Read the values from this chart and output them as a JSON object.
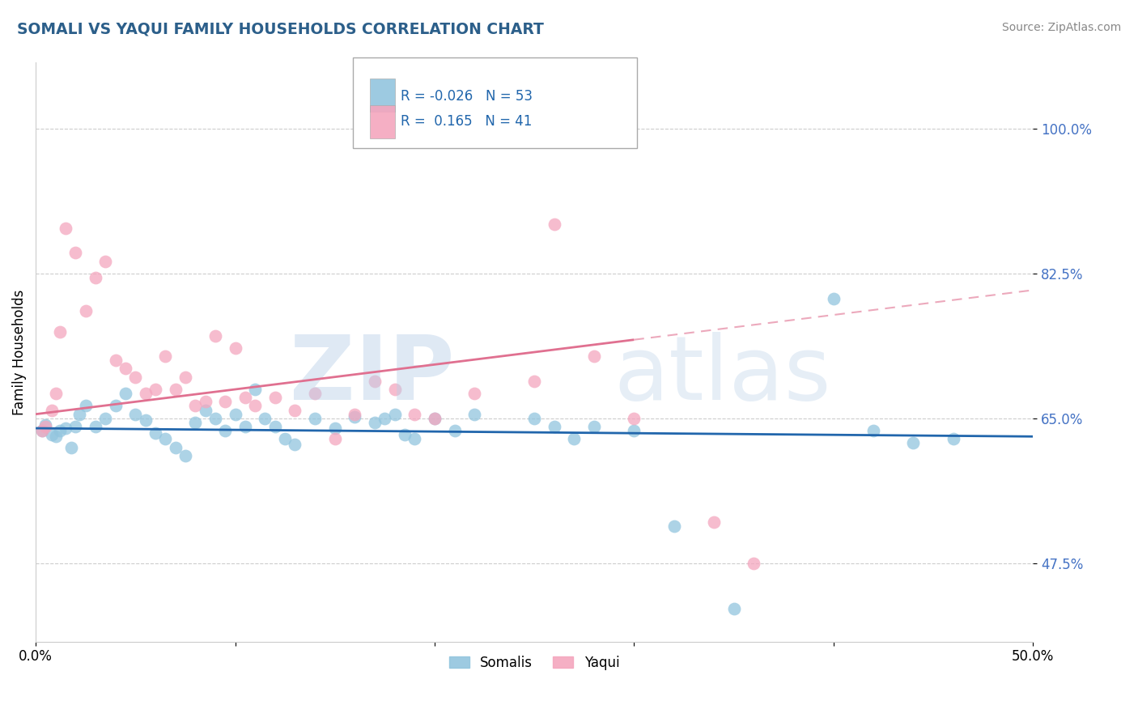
{
  "title": "SOMALI VS YAQUI FAMILY HOUSEHOLDS CORRELATION CHART",
  "source": "Source: ZipAtlas.com",
  "ylabel": "Family Households",
  "yticks": [
    "47.5%",
    "65.0%",
    "82.5%",
    "100.0%"
  ],
  "ytick_vals": [
    47.5,
    65.0,
    82.5,
    100.0
  ],
  "xlim": [
    0.0,
    50.0
  ],
  "ylim": [
    38.0,
    108.0
  ],
  "somali_R": "-0.026",
  "somali_N": "53",
  "yaqui_R": "0.165",
  "yaqui_N": "41",
  "somali_color": "#92c5de",
  "yaqui_color": "#f4a6be",
  "somali_line_color": "#2166ac",
  "yaqui_line_color": "#e07090",
  "legend_somali": "Somalis",
  "legend_yaqui": "Yaqui",
  "somali_line_x0": 0.0,
  "somali_line_y0": 63.8,
  "somali_line_x1": 50.0,
  "somali_line_y1": 62.8,
  "yaqui_solid_x0": 0.0,
  "yaqui_solid_y0": 65.5,
  "yaqui_solid_x1": 30.0,
  "yaqui_solid_y1": 74.5,
  "yaqui_dash_x0": 30.0,
  "yaqui_dash_y0": 74.5,
  "yaqui_dash_x1": 50.0,
  "yaqui_dash_y1": 80.5,
  "somali_scatter_x": [
    0.3,
    0.5,
    0.8,
    1.0,
    1.2,
    1.5,
    1.8,
    2.0,
    2.2,
    2.5,
    3.0,
    3.5,
    4.0,
    4.5,
    5.0,
    5.5,
    6.0,
    6.5,
    7.0,
    7.5,
    8.0,
    8.5,
    9.0,
    9.5,
    10.0,
    10.5,
    11.0,
    11.5,
    12.0,
    12.5,
    13.0,
    14.0,
    15.0,
    16.0,
    17.0,
    17.5,
    18.0,
    18.5,
    19.0,
    20.0,
    21.0,
    22.0,
    25.0,
    26.0,
    27.0,
    28.0,
    30.0,
    32.0,
    35.0,
    40.0,
    42.0,
    44.0,
    46.0
  ],
  "somali_scatter_y": [
    63.5,
    64.2,
    63.0,
    62.8,
    63.5,
    63.8,
    61.5,
    64.0,
    65.5,
    66.5,
    64.0,
    65.0,
    66.5,
    68.0,
    65.5,
    64.8,
    63.2,
    62.5,
    61.5,
    60.5,
    64.5,
    66.0,
    65.0,
    63.5,
    65.5,
    64.0,
    68.5,
    65.0,
    64.0,
    62.5,
    61.8,
    65.0,
    63.8,
    65.2,
    64.5,
    65.0,
    65.5,
    63.0,
    62.5,
    65.0,
    63.5,
    65.5,
    65.0,
    64.0,
    62.5,
    64.0,
    63.5,
    52.0,
    42.0,
    79.5,
    63.5,
    62.0,
    62.5
  ],
  "yaqui_scatter_x": [
    0.3,
    0.5,
    0.8,
    1.0,
    1.2,
    1.5,
    2.0,
    2.5,
    3.0,
    3.5,
    4.0,
    4.5,
    5.0,
    5.5,
    6.0,
    6.5,
    7.0,
    7.5,
    8.0,
    8.5,
    9.0,
    9.5,
    10.0,
    10.5,
    11.0,
    12.0,
    13.0,
    14.0,
    15.0,
    16.0,
    17.0,
    18.0,
    19.0,
    20.0,
    22.0,
    25.0,
    26.0,
    28.0,
    30.0,
    34.0,
    36.0
  ],
  "yaqui_scatter_y": [
    63.5,
    64.0,
    66.0,
    68.0,
    75.5,
    88.0,
    85.0,
    78.0,
    82.0,
    84.0,
    72.0,
    71.0,
    70.0,
    68.0,
    68.5,
    72.5,
    68.5,
    70.0,
    66.5,
    67.0,
    75.0,
    67.0,
    73.5,
    67.5,
    66.5,
    67.5,
    66.0,
    68.0,
    62.5,
    65.5,
    69.5,
    68.5,
    65.5,
    65.0,
    68.0,
    69.5,
    88.5,
    72.5,
    65.0,
    52.5,
    47.5
  ]
}
